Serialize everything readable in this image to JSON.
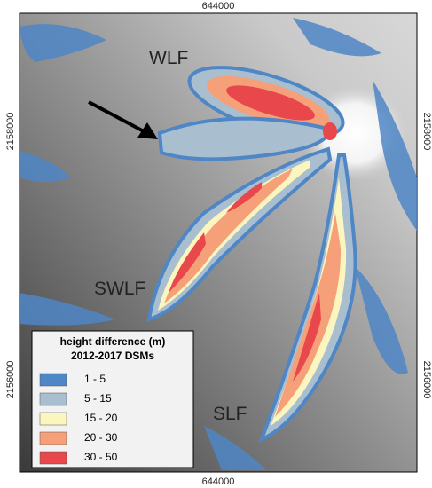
{
  "axes": {
    "top": "644000",
    "bottom": "644000",
    "left_top": "2158000",
    "left_bottom": "2156000",
    "right_top": "2158000",
    "right_bottom": "2156000"
  },
  "labels": {
    "wlf": "WLF",
    "swlf": "SWLF",
    "slf": "SLF"
  },
  "legend": {
    "title": "height difference (m)",
    "subtitle": "2012-2017 DSMs",
    "entries": [
      {
        "name": "1 - 5",
        "color": "#4f86c6"
      },
      {
        "name": "5 - 15",
        "color": "#a9bfcf"
      },
      {
        "name": "15 - 20",
        "color": "#fbf5c0"
      },
      {
        "name": "20 - 30",
        "color": "#f6a07a"
      },
      {
        "name": "30 - 50",
        "color": "#e8474b"
      }
    ]
  }
}
